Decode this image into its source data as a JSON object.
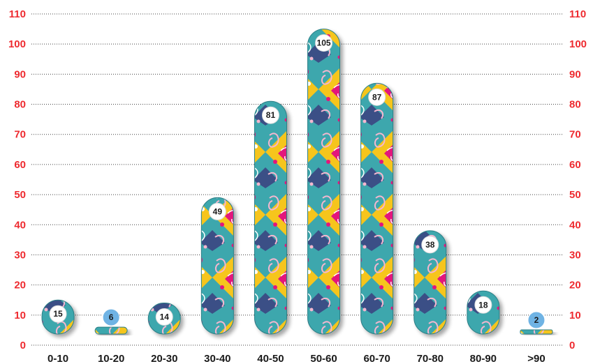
{
  "chart_data": {
    "type": "bar",
    "categories": [
      "0-10",
      "10-20",
      "20-30",
      "30-40",
      "40-50",
      "50-60",
      "60-70",
      "70-80",
      "80-90",
      ">90"
    ],
    "values": [
      15,
      6,
      14,
      49,
      81,
      105,
      87,
      38,
      18,
      2
    ],
    "ylim": [
      0,
      110
    ],
    "yticks": [
      0,
      10,
      20,
      30,
      40,
      50,
      60,
      70,
      80,
      90,
      100,
      110
    ],
    "axis_labels_both_sides": true,
    "grid": true,
    "legend": "none",
    "colors": {
      "tick_label": "#ee2a2f",
      "pattern_teal": "#3ea7ad",
      "pattern_yellow": "#f6c51d",
      "pattern_pink": "#e3127c",
      "pattern_navy": "#3b4f86",
      "pattern_light_pink": "#f4b7cf",
      "small_value_badge": "#6fb3e4"
    }
  }
}
